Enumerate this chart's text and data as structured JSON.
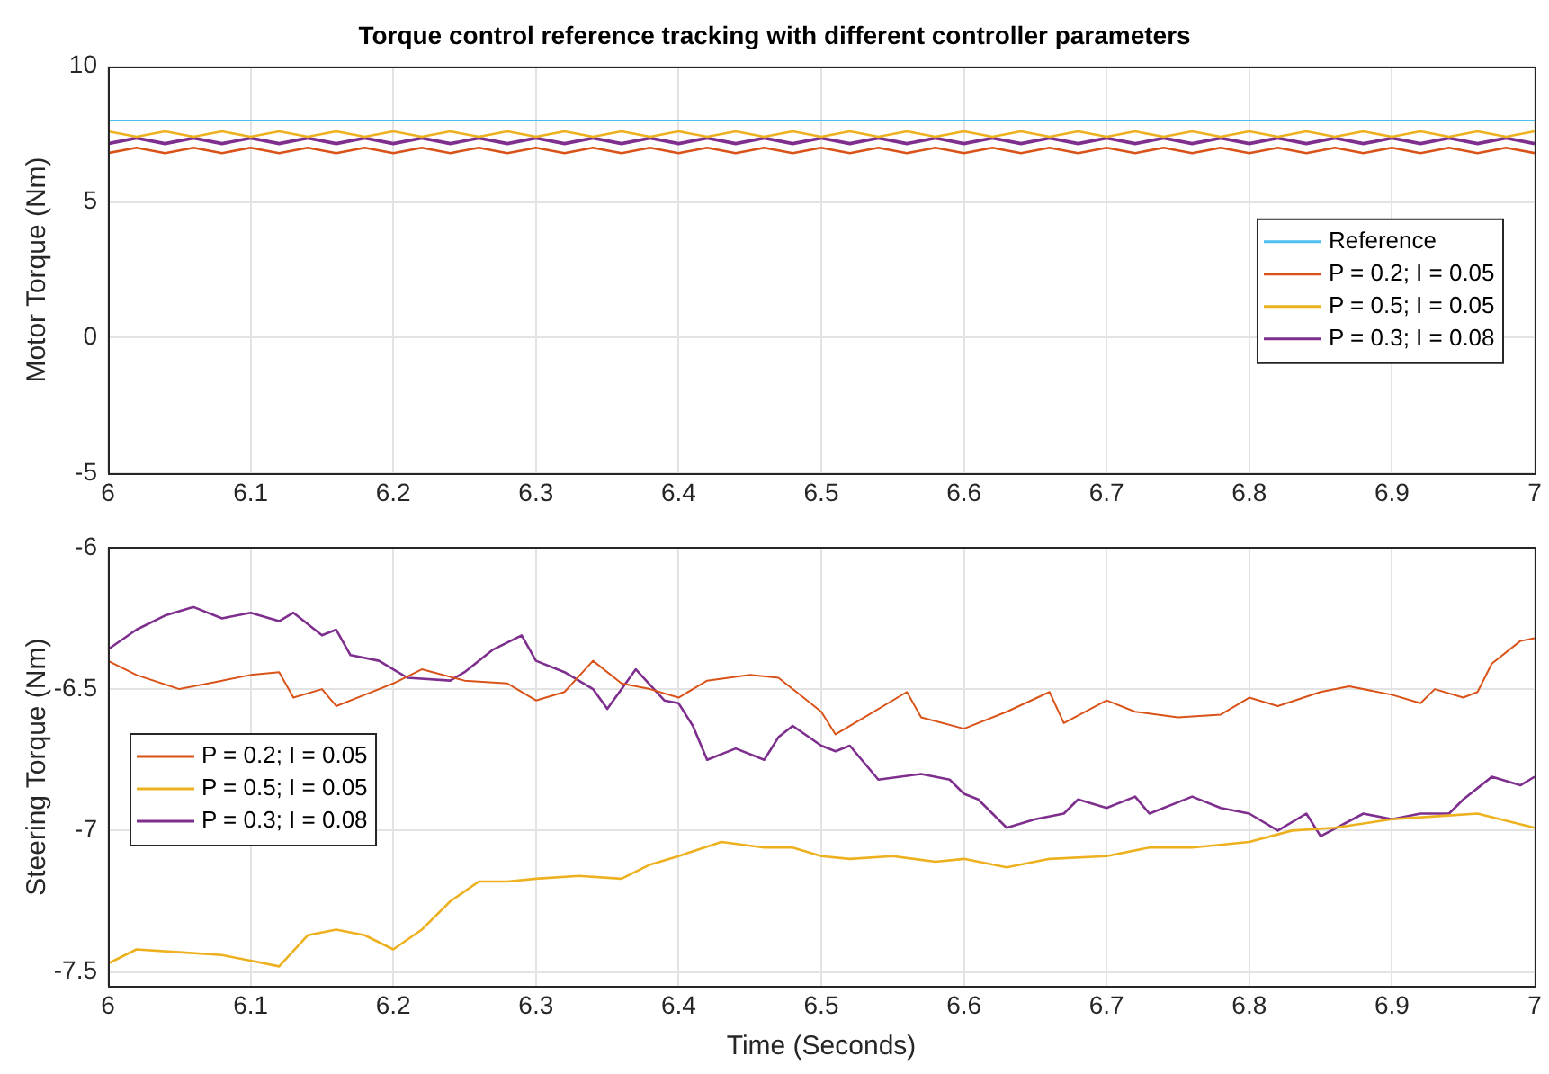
{
  "chart_data": [
    {
      "type": "line",
      "title": "Torque control reference tracking with different controller parameters",
      "ylabel": "Motor Torque (Nm)",
      "x": [
        6,
        6.02,
        6.04,
        6.06,
        6.08,
        6.1,
        6.12,
        6.14,
        6.16,
        6.18,
        6.2,
        6.22,
        6.24,
        6.26,
        6.28,
        6.3,
        6.32,
        6.34,
        6.36,
        6.38,
        6.4,
        6.42,
        6.44,
        6.46,
        6.48,
        6.5,
        6.52,
        6.54,
        6.56,
        6.58,
        6.6,
        6.62,
        6.64,
        6.66,
        6.68,
        6.7,
        6.72,
        6.74,
        6.76,
        6.78,
        6.8,
        6.82,
        6.84,
        6.86,
        6.88,
        6.9,
        6.92,
        6.94,
        6.96,
        6.98,
        7
      ],
      "series": [
        {
          "name": "Reference",
          "color": "#4dbeee",
          "x": [
            6,
            7
          ],
          "values": [
            8,
            8
          ]
        },
        {
          "name": "P = 0.2; I = 0.05",
          "color": "#d95319",
          "values": [
            6.8,
            7.0,
            6.8,
            7.0,
            6.8,
            7.0,
            6.8,
            7.0,
            6.8,
            7.0,
            6.8,
            7.0,
            6.8,
            7.0,
            6.8,
            7.0,
            6.8,
            7.0,
            6.8,
            7.0,
            6.8,
            7.0,
            6.8,
            7.0,
            6.8,
            7.0,
            6.8,
            7.0,
            6.8,
            7.0,
            6.8,
            7.0,
            6.8,
            7.0,
            6.8,
            7.0,
            6.8,
            7.0,
            6.8,
            7.0,
            6.8,
            7.0,
            6.8,
            7.0,
            6.8,
            7.0,
            6.8,
            7.0,
            6.8,
            7.0,
            6.8
          ]
        },
        {
          "name": "P = 0.5; I = 0.05",
          "color": "#edb120",
          "values": [
            7.6,
            7.4,
            7.6,
            7.4,
            7.6,
            7.4,
            7.6,
            7.4,
            7.6,
            7.4,
            7.6,
            7.4,
            7.6,
            7.4,
            7.6,
            7.4,
            7.6,
            7.4,
            7.6,
            7.4,
            7.6,
            7.4,
            7.6,
            7.4,
            7.6,
            7.4,
            7.6,
            7.4,
            7.6,
            7.4,
            7.6,
            7.4,
            7.6,
            7.4,
            7.6,
            7.4,
            7.6,
            7.4,
            7.6,
            7.4,
            7.6,
            7.4,
            7.6,
            7.4,
            7.6,
            7.4,
            7.6,
            7.4,
            7.6,
            7.4,
            7.6
          ]
        },
        {
          "name": "P = 0.3; I = 0.08",
          "color": "#7e2f8e",
          "values": [
            7.15,
            7.35,
            7.15,
            7.35,
            7.15,
            7.35,
            7.15,
            7.35,
            7.15,
            7.35,
            7.15,
            7.35,
            7.15,
            7.35,
            7.15,
            7.35,
            7.15,
            7.35,
            7.15,
            7.35,
            7.15,
            7.35,
            7.15,
            7.35,
            7.15,
            7.35,
            7.15,
            7.35,
            7.15,
            7.35,
            7.15,
            7.35,
            7.15,
            7.35,
            7.15,
            7.35,
            7.15,
            7.35,
            7.15,
            7.35,
            7.15,
            7.35,
            7.15,
            7.35,
            7.15,
            7.35,
            7.15,
            7.35,
            7.15,
            7.35,
            7.15
          ]
        }
      ],
      "xlim": [
        6,
        7
      ],
      "xticks": [
        6,
        6.1,
        6.2,
        6.3,
        6.4,
        6.5,
        6.6,
        6.7,
        6.8,
        6.9,
        7
      ],
      "ylim": [
        -5,
        10
      ],
      "yticks": [
        -5,
        0,
        5,
        10
      ],
      "grid": true,
      "legend": "right"
    },
    {
      "type": "line",
      "xlabel": "Time (Seconds)",
      "ylabel": "Steering Torque (Nm)",
      "series": [
        {
          "name": "P = 0.2; I = 0.05",
          "color": "#d95319",
          "x": [
            6,
            6.02,
            6.05,
            6.08,
            6.1,
            6.12,
            6.13,
            6.15,
            6.16,
            6.18,
            6.2,
            6.22,
            6.25,
            6.28,
            6.3,
            6.32,
            6.34,
            6.36,
            6.38,
            6.4,
            6.42,
            6.45,
            6.47,
            6.48,
            6.5,
            6.51,
            6.53,
            6.56,
            6.57,
            6.6,
            6.63,
            6.66,
            6.67,
            6.7,
            6.72,
            6.75,
            6.78,
            6.8,
            6.82,
            6.85,
            6.87,
            6.9,
            6.92,
            6.93,
            6.95,
            6.96,
            6.97,
            6.99,
            7
          ],
          "values": [
            -6.4,
            -6.45,
            -6.5,
            -6.47,
            -6.45,
            -6.44,
            -6.53,
            -6.5,
            -6.56,
            -6.52,
            -6.48,
            -6.43,
            -6.47,
            -6.48,
            -6.54,
            -6.51,
            -6.4,
            -6.48,
            -6.5,
            -6.53,
            -6.47,
            -6.45,
            -6.46,
            -6.5,
            -6.58,
            -6.66,
            -6.6,
            -6.51,
            -6.6,
            -6.64,
            -6.58,
            -6.51,
            -6.62,
            -6.54,
            -6.58,
            -6.6,
            -6.59,
            -6.53,
            -6.56,
            -6.51,
            -6.49,
            -6.52,
            -6.55,
            -6.5,
            -6.53,
            -6.51,
            -6.41,
            -6.33,
            -6.32
          ]
        },
        {
          "name": "P = 0.5; I = 0.05",
          "color": "#edb120",
          "x": [
            6,
            6.02,
            6.05,
            6.08,
            6.1,
            6.12,
            6.14,
            6.16,
            6.18,
            6.2,
            6.22,
            6.24,
            6.26,
            6.28,
            6.3,
            6.33,
            6.36,
            6.38,
            6.4,
            6.43,
            6.46,
            6.48,
            6.5,
            6.52,
            6.55,
            6.58,
            6.6,
            6.63,
            6.66,
            6.7,
            6.73,
            6.76,
            6.8,
            6.83,
            6.86,
            6.9,
            6.93,
            6.96,
            7
          ],
          "values": [
            -7.47,
            -7.42,
            -7.43,
            -7.44,
            -7.46,
            -7.48,
            -7.37,
            -7.35,
            -7.37,
            -7.42,
            -7.35,
            -7.25,
            -7.18,
            -7.18,
            -7.17,
            -7.16,
            -7.17,
            -7.12,
            -7.09,
            -7.04,
            -7.06,
            -7.06,
            -7.09,
            -7.1,
            -7.09,
            -7.11,
            -7.1,
            -7.13,
            -7.1,
            -7.09,
            -7.06,
            -7.06,
            -7.04,
            -7.0,
            -6.99,
            -6.96,
            -6.95,
            -6.94,
            -6.99
          ]
        },
        {
          "name": "P = 0.3; I = 0.08",
          "color": "#7e2f8e",
          "x": [
            6,
            6.02,
            6.04,
            6.06,
            6.08,
            6.1,
            6.12,
            6.13,
            6.15,
            6.16,
            6.17,
            6.19,
            6.2,
            6.21,
            6.24,
            6.25,
            6.27,
            6.29,
            6.3,
            6.32,
            6.34,
            6.35,
            6.37,
            6.39,
            6.4,
            6.41,
            6.42,
            6.44,
            6.46,
            6.47,
            6.48,
            6.5,
            6.51,
            6.52,
            6.54,
            6.57,
            6.59,
            6.6,
            6.61,
            6.63,
            6.65,
            6.67,
            6.68,
            6.7,
            6.72,
            6.73,
            6.76,
            6.78,
            6.8,
            6.82,
            6.84,
            6.85,
            6.88,
            6.9,
            6.92,
            6.94,
            6.95,
            6.97,
            6.99,
            7
          ],
          "values": [
            -6.36,
            -6.29,
            -6.24,
            -6.21,
            -6.25,
            -6.23,
            -6.26,
            -6.23,
            -6.31,
            -6.29,
            -6.38,
            -6.4,
            -6.43,
            -6.46,
            -6.47,
            -6.44,
            -6.36,
            -6.31,
            -6.4,
            -6.44,
            -6.5,
            -6.57,
            -6.43,
            -6.54,
            -6.55,
            -6.63,
            -6.75,
            -6.71,
            -6.75,
            -6.67,
            -6.63,
            -6.7,
            -6.72,
            -6.7,
            -6.82,
            -6.8,
            -6.82,
            -6.87,
            -6.89,
            -6.99,
            -6.96,
            -6.94,
            -6.89,
            -6.92,
            -6.88,
            -6.94,
            -6.88,
            -6.92,
            -6.94,
            -7.0,
            -6.94,
            -7.02,
            -6.94,
            -6.96,
            -6.94,
            -6.94,
            -6.89,
            -6.81,
            -6.84,
            -6.81
          ]
        }
      ],
      "xlim": [
        6,
        7
      ],
      "xticks": [
        6,
        6.1,
        6.2,
        6.3,
        6.4,
        6.5,
        6.6,
        6.7,
        6.8,
        6.9,
        7
      ],
      "ylim": [
        -7.55,
        -6
      ],
      "yticks": [
        -7.5,
        -7,
        -6.5,
        -6
      ],
      "grid": true,
      "legend": "left"
    }
  ]
}
